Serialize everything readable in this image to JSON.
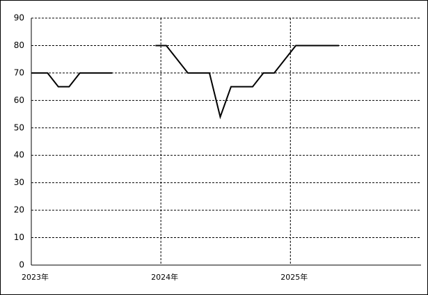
{
  "chart_data": {
    "type": "line",
    "x": [
      0,
      1.5,
      2.5,
      3.5,
      4.5,
      7.5,
      null,
      11.5,
      12.5,
      14.5,
      16.5,
      17.5,
      18.5,
      20.5,
      21.5,
      22.5,
      24.5,
      28.5
    ],
    "series": [
      {
        "color": "#000000",
        "values": [
          70,
          70,
          65,
          65,
          70,
          70,
          null,
          80,
          80,
          70,
          70,
          54,
          65,
          65,
          70,
          70,
          80,
          80
        ]
      }
    ],
    "xlim": [
      0,
      36.1
    ],
    "xticks": [
      {
        "value": 0,
        "label": "2023年"
      },
      {
        "value": 12,
        "label": "2024年"
      },
      {
        "value": 24,
        "label": "2025年"
      }
    ],
    "ylim": [
      0,
      90
    ],
    "yticks": [
      0,
      10,
      20,
      30,
      40,
      50,
      60,
      70,
      80,
      90
    ],
    "grid": true
  }
}
